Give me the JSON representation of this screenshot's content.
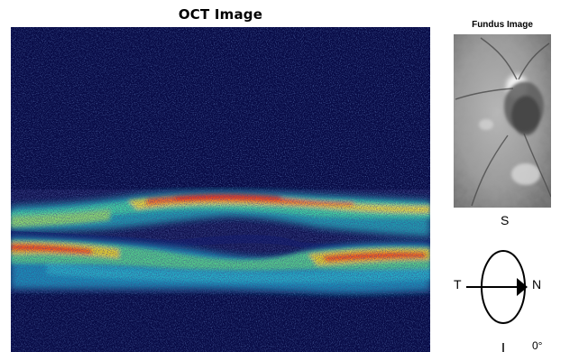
{
  "oct_panel": {
    "title": "OCT Image"
  },
  "fundus_panel": {
    "title": "Fundus Image"
  },
  "orientation": {
    "superior": "S",
    "temporal": "T",
    "nasal": "N",
    "inferior": "I",
    "angle": "0°"
  },
  "colors": {
    "oct_background": "#070a44",
    "oct_high_reflectivity": "#ff2a10",
    "oct_mid_reflectivity": "#f0e020",
    "oct_low_reflectivity": "#18c0d0"
  }
}
